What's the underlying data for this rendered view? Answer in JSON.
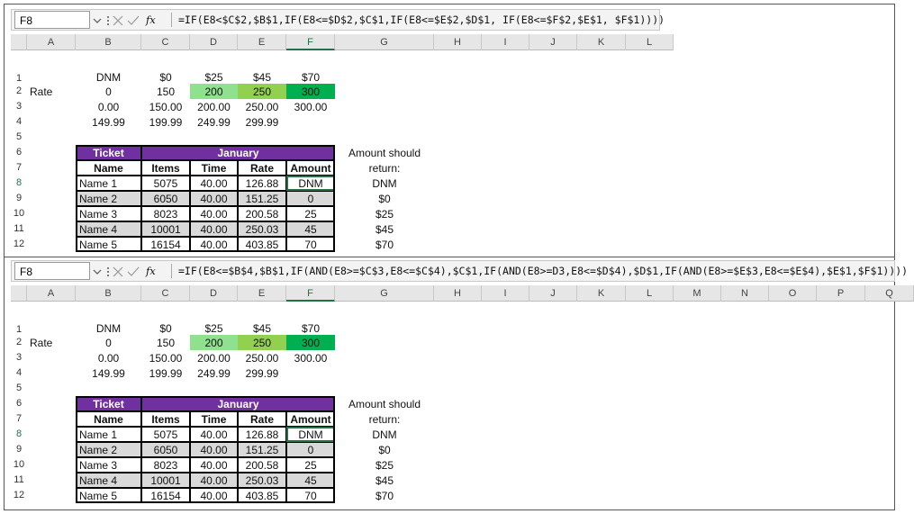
{
  "panels": [
    {
      "name_box": "F8",
      "fx_label": "fx",
      "formula": "=IF(E8<$C$2,$B$1,IF(E8<=$D$2,$C$1,IF(E8<=$E$2,$D$1, IF(E8<=$F$2,$E$1, $F$1))))",
      "columns": [
        "A",
        "B",
        "C",
        "D",
        "E",
        "F",
        "G",
        "H",
        "I",
        "J",
        "K",
        "L"
      ],
      "rows": [
        "1",
        "2",
        "3",
        "4",
        "5",
        "6",
        "7",
        "8",
        "9",
        "10",
        "11",
        "12"
      ],
      "grid": [
        [
          null,
          "DNM",
          "$0",
          "$25",
          "$45",
          "$70",
          null
        ],
        [
          "Rate",
          "0",
          "150",
          "200",
          "250",
          "300",
          null
        ],
        [
          null,
          "0.00",
          "150.00",
          "200.00",
          "250.00",
          "300.00",
          null
        ],
        [
          null,
          "149.99",
          "199.99",
          "249.99",
          "299.99",
          null,
          null
        ],
        [
          null,
          null,
          null,
          null,
          null,
          null,
          null
        ],
        [
          null,
          "Ticket",
          "January",
          null,
          null,
          null,
          "Amount should"
        ],
        [
          null,
          "Name",
          "Items",
          "Time",
          "Rate",
          "Amount",
          "return:"
        ],
        [
          null,
          "Name 1",
          "5075",
          "40.00",
          "126.88",
          "DNM",
          "DNM"
        ],
        [
          null,
          "Name 2",
          "6050",
          "40.00",
          "151.25",
          "0",
          "$0"
        ],
        [
          null,
          "Name 3",
          "8023",
          "40.00",
          "200.58",
          "25",
          "$25"
        ],
        [
          null,
          "Name 4",
          "10001",
          "40.00",
          "250.03",
          "45",
          "$45"
        ],
        [
          null,
          "Name 5",
          "16154",
          "40.00",
          "403.85",
          "70",
          "$70"
        ]
      ]
    },
    {
      "name_box": "F8",
      "fx_label": "fx",
      "formula": "=IF(E8<=$B$4,$B$1,IF(AND(E8>=$C$3,E8<=$C$4),$C$1,IF(AND(E8>=D3,E8<=$D$4),$D$1,IF(AND(E8>=$E$3,E8<=$E$4),$E$1,$F$1))))",
      "columns": [
        "A",
        "B",
        "C",
        "D",
        "E",
        "F",
        "G",
        "H",
        "I",
        "J",
        "K",
        "L",
        "M",
        "N",
        "O",
        "P",
        "Q"
      ],
      "rows": [
        "1",
        "2",
        "3",
        "4",
        "5",
        "6",
        "7",
        "8",
        "9",
        "10",
        "11",
        "12"
      ],
      "grid": [
        [
          null,
          "DNM",
          "$0",
          "$25",
          "$45",
          "$70",
          null
        ],
        [
          "Rate",
          "0",
          "150",
          "200",
          "250",
          "300",
          null
        ],
        [
          null,
          "0.00",
          "150.00",
          "200.00",
          "250.00",
          "300.00",
          null
        ],
        [
          null,
          "149.99",
          "199.99",
          "249.99",
          "299.99",
          null,
          null
        ],
        [
          null,
          null,
          null,
          null,
          null,
          null,
          null
        ],
        [
          null,
          "Ticket",
          "January",
          null,
          null,
          null,
          "Amount should"
        ],
        [
          null,
          "Name",
          "Items",
          "Time",
          "Rate",
          "Amount",
          "return:"
        ],
        [
          null,
          "Name 1",
          "5075",
          "40.00",
          "126.88",
          "DNM",
          "DNM"
        ],
        [
          null,
          "Name 2",
          "6050",
          "40.00",
          "151.25",
          "0",
          "$0"
        ],
        [
          null,
          "Name 3",
          "8023",
          "40.00",
          "200.58",
          "25",
          "$25"
        ],
        [
          null,
          "Name 4",
          "10001",
          "40.00",
          "250.03",
          "45",
          "$45"
        ],
        [
          null,
          "Name 5",
          "16154",
          "40.00",
          "403.85",
          "70",
          "$70"
        ]
      ]
    }
  ]
}
